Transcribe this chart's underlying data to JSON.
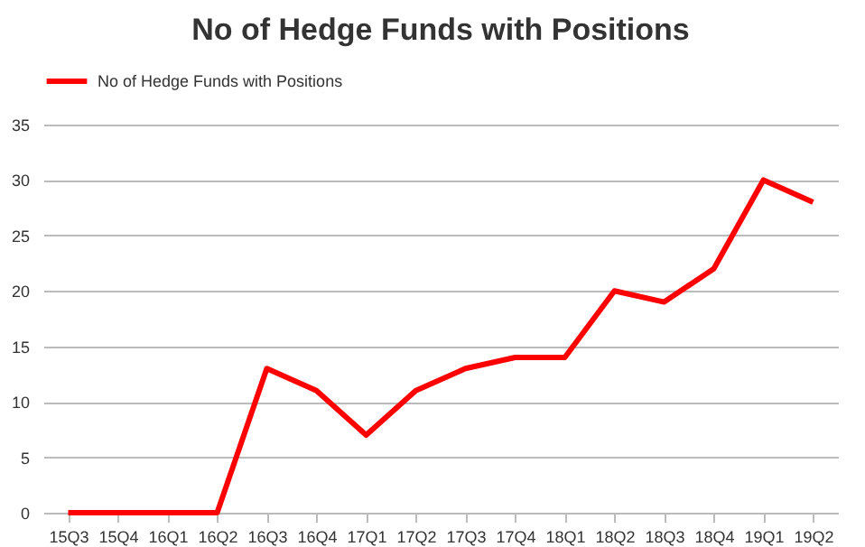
{
  "chart_data": {
    "type": "line",
    "title": "No of Hedge Funds with Positions",
    "categories": [
      "15Q3",
      "15Q4",
      "16Q1",
      "16Q2",
      "16Q3",
      "16Q4",
      "17Q1",
      "17Q2",
      "17Q3",
      "17Q4",
      "18Q1",
      "18Q2",
      "18Q3",
      "18Q4",
      "19Q1",
      "19Q2"
    ],
    "series": [
      {
        "name": "No of Hedge Funds with Positions",
        "color": "#ff0000",
        "values": [
          0,
          0,
          0,
          0,
          13,
          11,
          7,
          11,
          13,
          14,
          14,
          20,
          19,
          22,
          30,
          28
        ]
      }
    ],
    "ylim": [
      0,
      35
    ],
    "yticks": [
      0,
      5,
      10,
      15,
      20,
      25,
      30,
      35
    ],
    "grid": "y",
    "legend": "top",
    "marker": "none",
    "line_style": "solid"
  }
}
